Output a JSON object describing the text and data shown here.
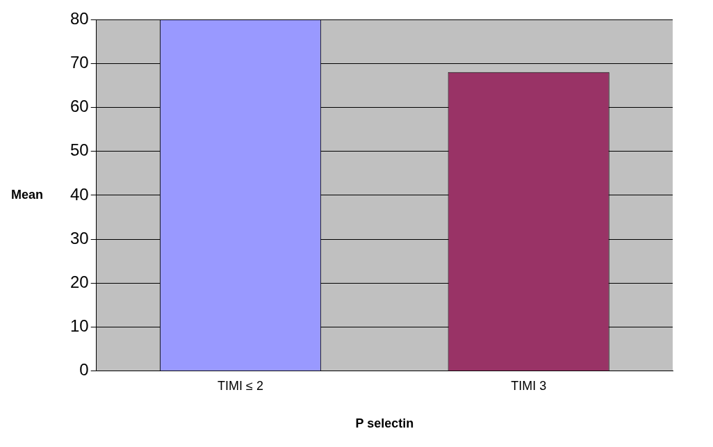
{
  "chart_data": {
    "type": "bar",
    "categories": [
      "TIMI ≤ 2",
      "TIMI 3"
    ],
    "values": [
      80,
      68
    ],
    "colors": [
      "#9999ff",
      "#993366"
    ],
    "xlabel": "P selectin",
    "ylabel": "Mean",
    "ylim": [
      0,
      80
    ],
    "yticks": [
      0,
      10,
      20,
      30,
      40,
      50,
      60,
      70,
      80
    ],
    "grid": "y"
  }
}
